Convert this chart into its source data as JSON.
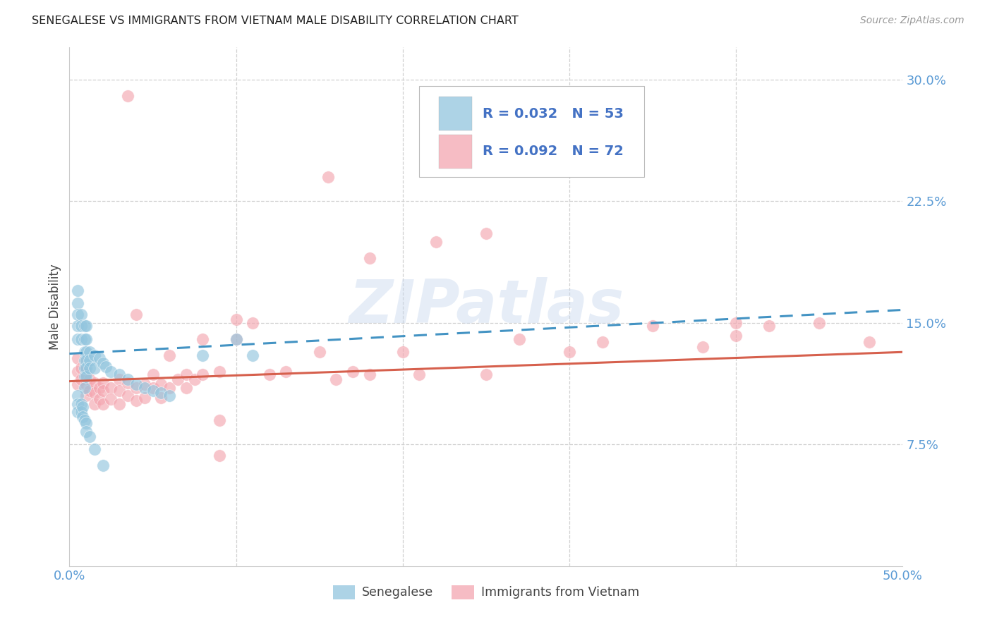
{
  "title": "SENEGALESE VS IMMIGRANTS FROM VIETNAM MALE DISABILITY CORRELATION CHART",
  "source": "Source: ZipAtlas.com",
  "ylabel": "Male Disability",
  "xlim": [
    0.0,
    0.5
  ],
  "ylim": [
    0.0,
    0.32
  ],
  "xtick_positions": [
    0.0,
    0.1,
    0.2,
    0.3,
    0.4,
    0.5
  ],
  "ytick_positions": [
    0.0,
    0.075,
    0.15,
    0.225,
    0.3
  ],
  "xticklabels": [
    "0.0%",
    "",
    "",
    "",
    "",
    "50.0%"
  ],
  "yticklabels": [
    "",
    "7.5%",
    "15.0%",
    "22.5%",
    "30.0%"
  ],
  "blue_R": 0.032,
  "blue_N": 53,
  "pink_R": 0.092,
  "pink_N": 72,
  "blue_color": "#92c5de",
  "pink_color": "#f4a6b0",
  "blue_line_color": "#4393c3",
  "pink_line_color": "#d6604d",
  "legend_label_blue": "Senegalese",
  "legend_label_pink": "Immigrants from Vietnam",
  "watermark": "ZIPatlas",
  "blue_x": [
    0.005,
    0.005,
    0.005,
    0.005,
    0.005,
    0.007,
    0.007,
    0.007,
    0.009,
    0.009,
    0.009,
    0.009,
    0.009,
    0.009,
    0.009,
    0.01,
    0.01,
    0.01,
    0.01,
    0.01,
    0.01,
    0.012,
    0.012,
    0.012,
    0.015,
    0.015,
    0.018,
    0.02,
    0.022,
    0.025,
    0.03,
    0.035,
    0.04,
    0.045,
    0.05,
    0.055,
    0.06,
    0.08,
    0.1,
    0.11,
    0.005,
    0.005,
    0.005,
    0.007,
    0.007,
    0.008,
    0.008,
    0.009,
    0.01,
    0.01,
    0.012,
    0.015,
    0.02
  ],
  "blue_y": [
    0.17,
    0.162,
    0.155,
    0.148,
    0.14,
    0.155,
    0.148,
    0.14,
    0.148,
    0.14,
    0.132,
    0.127,
    0.122,
    0.117,
    0.11,
    0.148,
    0.14,
    0.132,
    0.127,
    0.122,
    0.117,
    0.132,
    0.127,
    0.122,
    0.13,
    0.122,
    0.128,
    0.125,
    0.123,
    0.12,
    0.118,
    0.115,
    0.112,
    0.11,
    0.108,
    0.107,
    0.105,
    0.13,
    0.14,
    0.13,
    0.105,
    0.1,
    0.095,
    0.1,
    0.095,
    0.098,
    0.092,
    0.09,
    0.088,
    0.083,
    0.08,
    0.072,
    0.062
  ],
  "pink_x": [
    0.005,
    0.005,
    0.005,
    0.007,
    0.007,
    0.01,
    0.01,
    0.01,
    0.012,
    0.012,
    0.015,
    0.015,
    0.015,
    0.018,
    0.018,
    0.02,
    0.02,
    0.02,
    0.025,
    0.025,
    0.03,
    0.03,
    0.03,
    0.035,
    0.035,
    0.04,
    0.04,
    0.04,
    0.045,
    0.045,
    0.05,
    0.05,
    0.055,
    0.055,
    0.06,
    0.06,
    0.065,
    0.07,
    0.07,
    0.075,
    0.08,
    0.08,
    0.09,
    0.1,
    0.1,
    0.11,
    0.12,
    0.13,
    0.15,
    0.16,
    0.17,
    0.18,
    0.2,
    0.21,
    0.25,
    0.27,
    0.3,
    0.32,
    0.35,
    0.38,
    0.4,
    0.42,
    0.45,
    0.48,
    0.22,
    0.18,
    0.09,
    0.25,
    0.035,
    0.155,
    0.09,
    0.4
  ],
  "pink_y": [
    0.128,
    0.12,
    0.112,
    0.122,
    0.115,
    0.118,
    0.112,
    0.105,
    0.115,
    0.108,
    0.113,
    0.107,
    0.1,
    0.11,
    0.103,
    0.113,
    0.108,
    0.1,
    0.11,
    0.103,
    0.115,
    0.108,
    0.1,
    0.113,
    0.105,
    0.155,
    0.11,
    0.102,
    0.112,
    0.104,
    0.118,
    0.11,
    0.112,
    0.104,
    0.13,
    0.11,
    0.115,
    0.118,
    0.11,
    0.115,
    0.14,
    0.118,
    0.12,
    0.152,
    0.14,
    0.15,
    0.118,
    0.12,
    0.132,
    0.115,
    0.12,
    0.118,
    0.132,
    0.118,
    0.118,
    0.14,
    0.132,
    0.138,
    0.148,
    0.135,
    0.142,
    0.148,
    0.15,
    0.138,
    0.2,
    0.19,
    0.068,
    0.205,
    0.29,
    0.24,
    0.09,
    0.15
  ]
}
